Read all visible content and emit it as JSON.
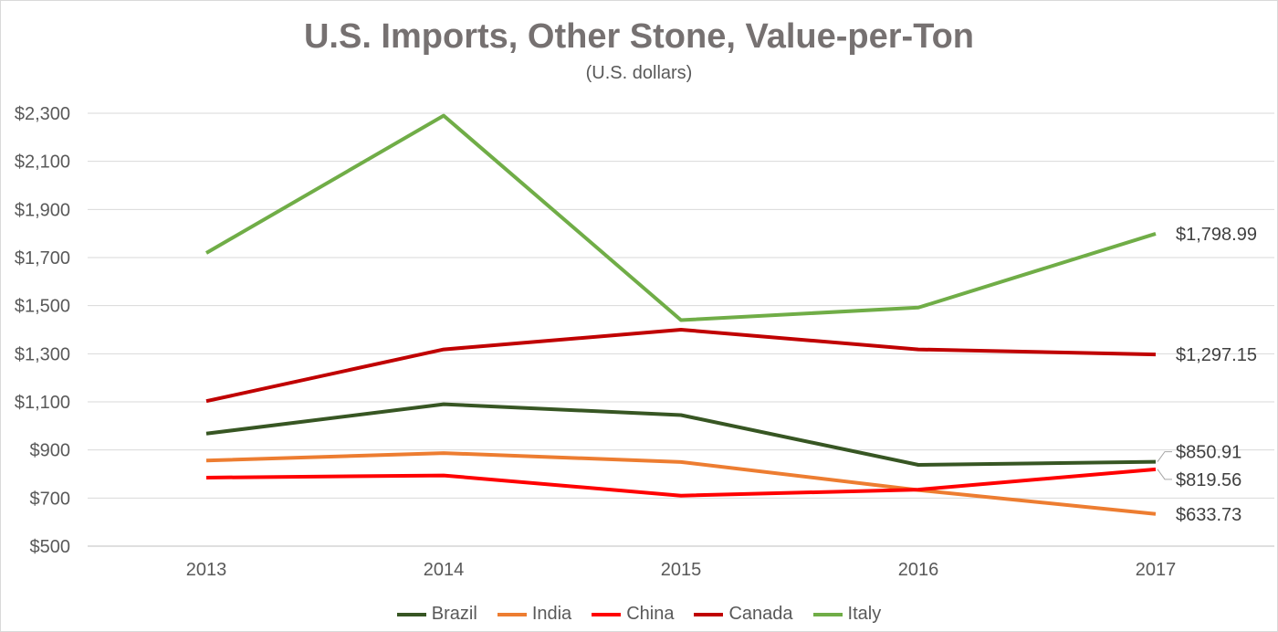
{
  "chart_data": {
    "type": "line",
    "title": "U.S. Imports, Other Stone, Value-per-Ton",
    "subtitle": "(U.S. dollars)",
    "categories": [
      "2013",
      "2014",
      "2015",
      "2016",
      "2017"
    ],
    "y_ticks": [
      "$500",
      "$700",
      "$900",
      "$1,100",
      "$1,300",
      "$1,500",
      "$1,700",
      "$1,900",
      "$2,100",
      "$2,300"
    ],
    "ylim": [
      500,
      2300
    ],
    "grid": true,
    "legend_position": "bottom",
    "series": [
      {
        "name": "Brazil",
        "color": "#375623",
        "values": [
          968,
          1090,
          1045,
          838,
          850.91
        ],
        "end_label": "$850.91"
      },
      {
        "name": "India",
        "color": "#ed7d31",
        "values": [
          856,
          887,
          850,
          733,
          633.73
        ],
        "end_label": "$633.73"
      },
      {
        "name": "China",
        "color": "#ff0000",
        "values": [
          785,
          794,
          710,
          735,
          819.56
        ],
        "end_label": "$819.56"
      },
      {
        "name": "Canada",
        "color": "#c00000",
        "values": [
          1103,
          1318,
          1400,
          1318,
          1297.15
        ],
        "end_label": "$1,297.15"
      },
      {
        "name": "Italy",
        "color": "#70ad47",
        "values": [
          1719,
          2290,
          1440,
          1492,
          1798.99
        ],
        "end_label": "$1,798.99"
      }
    ]
  }
}
